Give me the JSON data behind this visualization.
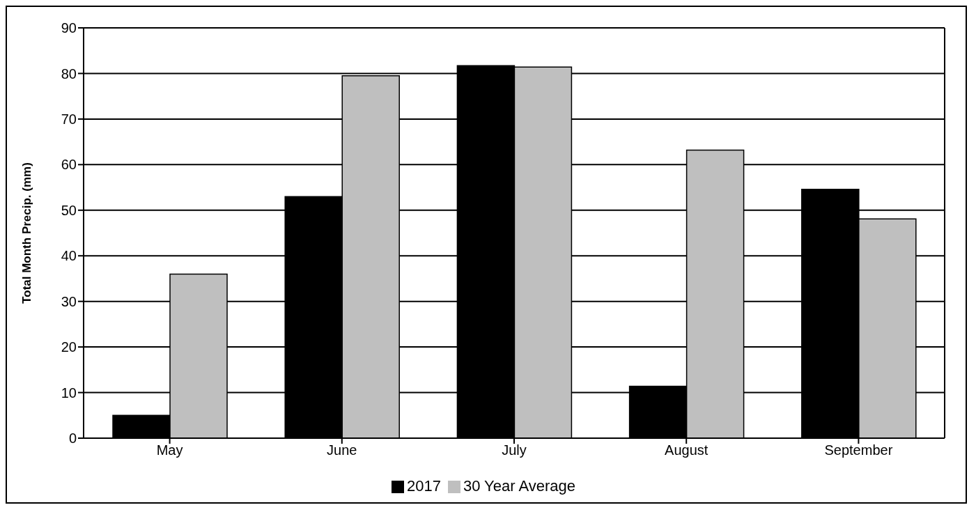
{
  "chart_data": {
    "type": "bar",
    "ylabel": "Total Month Precip. (mm)",
    "categories": [
      "May",
      "June",
      "July",
      "August",
      "September"
    ],
    "series": [
      {
        "name": "2017",
        "color": "#000000",
        "values": [
          5,
          53,
          81.7,
          11.4,
          54.6
        ]
      },
      {
        "name": "30 Year Average",
        "color": "#bfbfbf",
        "values": [
          36,
          79.5,
          81.4,
          63.2,
          48.1
        ]
      }
    ],
    "ylim": [
      0,
      90
    ],
    "yticks": [
      0,
      10,
      20,
      30,
      40,
      50,
      60,
      70,
      80,
      90
    ],
    "grid": "y",
    "legend": "bottom"
  }
}
